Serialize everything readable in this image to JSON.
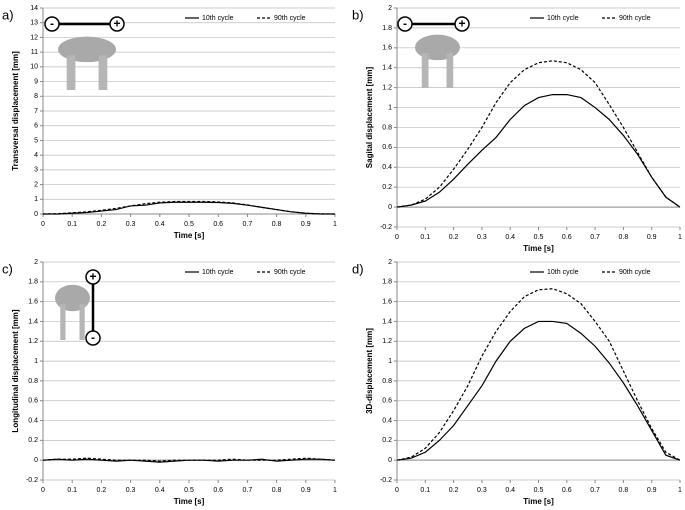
{
  "chart_data": [
    {
      "type": "line",
      "panel_label": "a)",
      "xlabel": "Time [s]",
      "ylabel": "Transversal displacement [mm]",
      "x": [
        0,
        0.05,
        0.1,
        0.15,
        0.2,
        0.25,
        0.3,
        0.35,
        0.4,
        0.45,
        0.5,
        0.55,
        0.6,
        0.65,
        0.7,
        0.75,
        0.8,
        0.85,
        0.9,
        0.95,
        1
      ],
      "series": [
        {
          "name": "10th cycle",
          "color": "#000000",
          "dash": false,
          "values": [
            0,
            0,
            0.05,
            0.1,
            0.2,
            0.3,
            0.55,
            0.6,
            0.75,
            0.8,
            0.8,
            0.8,
            0.78,
            0.72,
            0.6,
            0.45,
            0.3,
            0.15,
            0.05,
            0,
            0
          ]
        },
        {
          "name": "90th cycle",
          "color": "#000000",
          "dash": true,
          "values": [
            0,
            0.02,
            0.08,
            0.15,
            0.25,
            0.38,
            0.55,
            0.7,
            0.8,
            0.85,
            0.85,
            0.85,
            0.82,
            0.75,
            0.62,
            0.45,
            0.3,
            0.15,
            0.05,
            0.01,
            0
          ]
        }
      ],
      "xlim": [
        0,
        1
      ],
      "ylim": [
        0,
        14
      ],
      "xticks": [
        0,
        0.1,
        0.2,
        0.3,
        0.4,
        0.5,
        0.6,
        0.7,
        0.8,
        0.9,
        1
      ],
      "yticks": [
        0,
        1,
        2,
        3,
        4,
        5,
        6,
        7,
        8,
        9,
        10,
        11,
        12,
        13,
        14
      ],
      "grid": true,
      "legend": "top-right",
      "annotations": [
        "-",
        "+"
      ]
    },
    {
      "type": "line",
      "panel_label": "b)",
      "xlabel": "Time [s]",
      "ylabel": "Sagital displacement  [mm]",
      "x": [
        0,
        0.05,
        0.1,
        0.15,
        0.2,
        0.25,
        0.3,
        0.35,
        0.4,
        0.45,
        0.5,
        0.55,
        0.6,
        0.65,
        0.7,
        0.75,
        0.8,
        0.85,
        0.9,
        0.95,
        1
      ],
      "series": [
        {
          "name": "10th cycle",
          "color": "#000000",
          "dash": false,
          "values": [
            0,
            0.02,
            0.06,
            0.15,
            0.28,
            0.43,
            0.57,
            0.7,
            0.88,
            1.02,
            1.1,
            1.13,
            1.13,
            1.1,
            1.0,
            0.88,
            0.72,
            0.53,
            0.3,
            0.1,
            0
          ]
        },
        {
          "name": "90th cycle",
          "color": "#000000",
          "dash": true,
          "values": [
            0,
            0.02,
            0.08,
            0.2,
            0.38,
            0.58,
            0.8,
            1.05,
            1.25,
            1.38,
            1.45,
            1.47,
            1.45,
            1.38,
            1.25,
            1.03,
            0.8,
            0.55,
            0.3,
            0.1,
            0
          ]
        }
      ],
      "xlim": [
        0,
        1
      ],
      "ylim": [
        -0.2,
        2
      ],
      "xticks": [
        0,
        0.1,
        0.2,
        0.3,
        0.4,
        0.5,
        0.6,
        0.7,
        0.8,
        0.9,
        1
      ],
      "yticks": [
        -0.2,
        0,
        0.2,
        0.4,
        0.6,
        0.8,
        1,
        1.2,
        1.4,
        1.6,
        1.8,
        2
      ],
      "grid": true,
      "legend": "top-right",
      "annotations": [
        "-",
        "+"
      ]
    },
    {
      "type": "line",
      "panel_label": "c)",
      "xlabel": "Time [s]",
      "ylabel": "Longitudinal displacement [mm]",
      "x": [
        0,
        0.05,
        0.1,
        0.15,
        0.2,
        0.25,
        0.3,
        0.35,
        0.4,
        0.45,
        0.5,
        0.55,
        0.6,
        0.65,
        0.7,
        0.75,
        0.8,
        0.85,
        0.9,
        0.95,
        1
      ],
      "series": [
        {
          "name": "10th cycle",
          "color": "#000000",
          "dash": false,
          "values": [
            0,
            0.01,
            0,
            0.01,
            0,
            -0.01,
            0,
            -0.01,
            -0.02,
            -0.01,
            0,
            0,
            -0.01,
            0,
            0,
            0.01,
            -0.01,
            0,
            0.01,
            0.01,
            0
          ]
        },
        {
          "name": "90th cycle",
          "color": "#000000",
          "dash": true,
          "values": [
            0,
            0.01,
            0.01,
            0.02,
            0.01,
            0,
            0,
            0,
            -0.01,
            0,
            0,
            0,
            0,
            0.01,
            0,
            0,
            0,
            0.01,
            0.02,
            0.01,
            0
          ]
        }
      ],
      "xlim": [
        0,
        1
      ],
      "ylim": [
        -0.2,
        2
      ],
      "xticks": [
        0,
        0.1,
        0.2,
        0.3,
        0.4,
        0.5,
        0.6,
        0.7,
        0.8,
        0.9,
        1
      ],
      "yticks": [
        -0.2,
        0,
        0.2,
        0.4,
        0.6,
        0.8,
        1,
        1.2,
        1.4,
        1.6,
        1.8,
        2
      ],
      "grid": true,
      "legend": "top-right",
      "annotations": [
        "+",
        "-"
      ]
    },
    {
      "type": "line",
      "panel_label": "d)",
      "xlabel": "Time [s]",
      "ylabel": "3D-displacement [mm]",
      "x": [
        0,
        0.05,
        0.1,
        0.15,
        0.2,
        0.25,
        0.3,
        0.35,
        0.4,
        0.45,
        0.5,
        0.55,
        0.6,
        0.65,
        0.7,
        0.75,
        0.8,
        0.85,
        0.9,
        0.95,
        1
      ],
      "series": [
        {
          "name": "10th cycle",
          "color": "#000000",
          "dash": false,
          "values": [
            0,
            0.02,
            0.08,
            0.2,
            0.35,
            0.55,
            0.75,
            1.0,
            1.2,
            1.33,
            1.4,
            1.4,
            1.38,
            1.28,
            1.15,
            0.98,
            0.78,
            0.55,
            0.3,
            0.05,
            0
          ]
        },
        {
          "name": "90th cycle",
          "color": "#000000",
          "dash": true,
          "values": [
            0,
            0.03,
            0.12,
            0.28,
            0.5,
            0.75,
            1.05,
            1.3,
            1.5,
            1.65,
            1.72,
            1.73,
            1.68,
            1.58,
            1.4,
            1.2,
            0.9,
            0.6,
            0.32,
            0.08,
            0
          ]
        }
      ],
      "xlim": [
        0,
        1
      ],
      "ylim": [
        -0.2,
        2
      ],
      "xticks": [
        0,
        0.1,
        0.2,
        0.3,
        0.4,
        0.5,
        0.6,
        0.7,
        0.8,
        0.9,
        1
      ],
      "yticks": [
        -0.2,
        0,
        0.2,
        0.4,
        0.6,
        0.8,
        1,
        1.2,
        1.4,
        1.6,
        1.8,
        2
      ],
      "grid": true,
      "legend": "top-right"
    }
  ]
}
